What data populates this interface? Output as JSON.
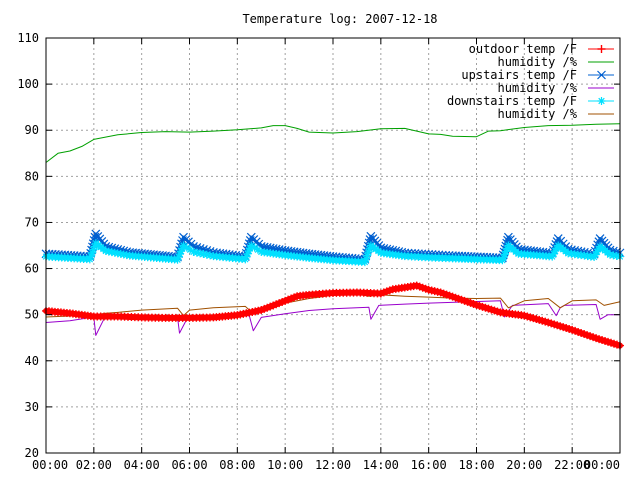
{
  "chart_data": {
    "type": "line",
    "title": "Temperature log: 2007-12-18",
    "xlabel": "",
    "ylabel": "",
    "xlim": [
      "00:00",
      "24:00"
    ],
    "ylim": [
      20,
      110
    ],
    "y_ticks": [
      20,
      30,
      40,
      50,
      60,
      70,
      80,
      90,
      100,
      110
    ],
    "x_ticks": [
      "00:00",
      "02:00",
      "04:00",
      "06:00",
      "08:00",
      "10:00",
      "12:00",
      "14:00",
      "16:00",
      "18:00",
      "20:00",
      "22:00",
      "00:00"
    ],
    "grid": true,
    "legend_position": "top-right",
    "series": [
      {
        "name": "outdoor temp /F",
        "color": "#ff0000",
        "marker": "plus",
        "x": [
          "00:00",
          "01:00",
          "02:00",
          "03:00",
          "04:00",
          "05:00",
          "06:00",
          "07:00",
          "08:00",
          "09:00",
          "10:00",
          "10:30",
          "11:00",
          "12:00",
          "13:00",
          "14:00",
          "14:30",
          "15:00",
          "15:30",
          "16:00",
          "16:30",
          "17:00",
          "18:00",
          "19:00",
          "20:00",
          "21:00",
          "22:00",
          "23:00",
          "24:00"
        ],
        "values": [
          50.8,
          50.3,
          49.6,
          49.6,
          49.4,
          49.3,
          49.3,
          49.4,
          49.9,
          51.0,
          53.0,
          54.0,
          54.3,
          54.7,
          54.8,
          54.6,
          55.5,
          55.9,
          56.3,
          55.4,
          54.8,
          53.9,
          52.1,
          50.5,
          49.8,
          48.3,
          46.7,
          44.9,
          43.3
        ]
      },
      {
        "name": "humidity /%",
        "color": "#00a000",
        "marker": "none",
        "x": [
          "00:00",
          "00:30",
          "01:00",
          "01:30",
          "02:00",
          "03:00",
          "04:00",
          "05:00",
          "06:00",
          "07:00",
          "08:00",
          "09:00",
          "09:30",
          "10:00",
          "10:30",
          "11:00",
          "12:00",
          "13:00",
          "14:00",
          "15:00",
          "16:00",
          "16:30",
          "17:00",
          "18:00",
          "18:30",
          "19:00",
          "20:00",
          "21:00",
          "22:00",
          "23:00",
          "24:00"
        ],
        "values": [
          83,
          85,
          85.5,
          86.5,
          88,
          89,
          89.5,
          89.7,
          89.6,
          89.8,
          90.1,
          90.5,
          91,
          91,
          90.4,
          89.6,
          89.4,
          89.7,
          90.3,
          90.4,
          89.2,
          89.1,
          88.7,
          88.6,
          89.8,
          89.9,
          90.6,
          91.0,
          91.1,
          91.3,
          91.4
        ]
      },
      {
        "name": "upstairs temp /F",
        "color": "#0060d0",
        "marker": "x",
        "x": [
          "00:00",
          "01:50",
          "02:05",
          "02:30",
          "03:30",
          "05:30",
          "05:45",
          "06:10",
          "07:00",
          "08:20",
          "08:35",
          "09:00",
          "10:00",
          "11:00",
          "12:00",
          "13:20",
          "13:35",
          "14:00",
          "15:00",
          "16:00",
          "17:00",
          "19:05",
          "19:20",
          "19:45",
          "21:10",
          "21:25",
          "21:50",
          "22:55",
          "23:10",
          "23:35",
          "24:00"
        ],
        "values": [
          63.2,
          62.6,
          67.5,
          64.8,
          63.5,
          62.5,
          66.8,
          64.8,
          63.5,
          62.6,
          66.8,
          64.8,
          63.9,
          63.2,
          62.6,
          62.0,
          67.0,
          64.5,
          63.4,
          63.1,
          62.8,
          62.3,
          66.8,
          64.2,
          63.3,
          66.5,
          64.2,
          63.1,
          66.5,
          64.0,
          63.4
        ]
      },
      {
        "name": "humidity /%",
        "color": "#9900cc",
        "marker": "none",
        "x": [
          "00:00",
          "01:00",
          "02:00",
          "02:05",
          "02:25",
          "03:00",
          "05:30",
          "05:35",
          "05:55",
          "07:00",
          "08:30",
          "08:40",
          "09:00",
          "10:00",
          "11:00",
          "12:00",
          "13:30",
          "13:35",
          "13:55",
          "15:00",
          "16:00",
          "19:00",
          "19:10",
          "19:30",
          "21:00",
          "21:20",
          "21:30",
          "21:40",
          "23:00",
          "23:10",
          "23:30",
          "24:00"
        ],
        "values": [
          48.3,
          48.7,
          49.5,
          45.5,
          49.0,
          49.3,
          49.5,
          46.0,
          49.3,
          49.4,
          49.8,
          46.5,
          49.4,
          50.2,
          50.9,
          51.3,
          51.6,
          49.0,
          52.0,
          52.3,
          52.5,
          53.0,
          49.5,
          52.0,
          52.4,
          49.8,
          51.5,
          52.0,
          52.2,
          49.0,
          50.0,
          50.0
        ]
      },
      {
        "name": "downstairs temp /F",
        "color": "#00e0ff",
        "marker": "star",
        "x": [
          "00:00",
          "01:50",
          "02:05",
          "02:30",
          "03:30",
          "05:30",
          "05:45",
          "06:10",
          "07:00",
          "08:20",
          "08:35",
          "09:00",
          "10:00",
          "11:00",
          "12:00",
          "13:20",
          "13:35",
          "14:00",
          "15:00",
          "16:00",
          "17:00",
          "19:05",
          "19:20",
          "19:45",
          "21:10",
          "21:25",
          "21:50",
          "22:55",
          "23:10",
          "23:35",
          "24:00"
        ],
        "values": [
          62.6,
          62.0,
          65.5,
          63.8,
          62.8,
          61.9,
          65.0,
          63.6,
          62.7,
          62.0,
          65.0,
          63.6,
          62.9,
          62.3,
          61.8,
          61.4,
          65.0,
          63.4,
          62.7,
          62.4,
          62.2,
          61.8,
          65.0,
          63.2,
          62.6,
          65.0,
          63.3,
          62.5,
          64.8,
          63.0,
          62.6
        ]
      },
      {
        "name": "humidity /%",
        "color": "#a05000",
        "marker": "none",
        "x": [
          "00:00",
          "01:00",
          "02:00",
          "02:30",
          "03:00",
          "04:00",
          "05:30",
          "05:45",
          "06:00",
          "07:00",
          "08:20",
          "08:40",
          "09:00",
          "10:00",
          "11:00",
          "12:00",
          "13:00",
          "13:30",
          "14:00",
          "15:00",
          "16:00",
          "17:00",
          "18:00",
          "19:00",
          "19:20",
          "20:00",
          "21:00",
          "21:30",
          "22:00",
          "23:00",
          "23:20",
          "24:00"
        ],
        "values": [
          49.5,
          49.7,
          50.0,
          50.3,
          50.5,
          51.0,
          51.4,
          49.8,
          51.0,
          51.5,
          51.8,
          50.2,
          51.5,
          52.5,
          53.5,
          54.2,
          54.5,
          54.0,
          54.3,
          54.0,
          53.8,
          53.6,
          53.5,
          53.6,
          51.5,
          53.0,
          53.5,
          51.5,
          53.0,
          53.2,
          52.0,
          52.8
        ]
      }
    ]
  }
}
